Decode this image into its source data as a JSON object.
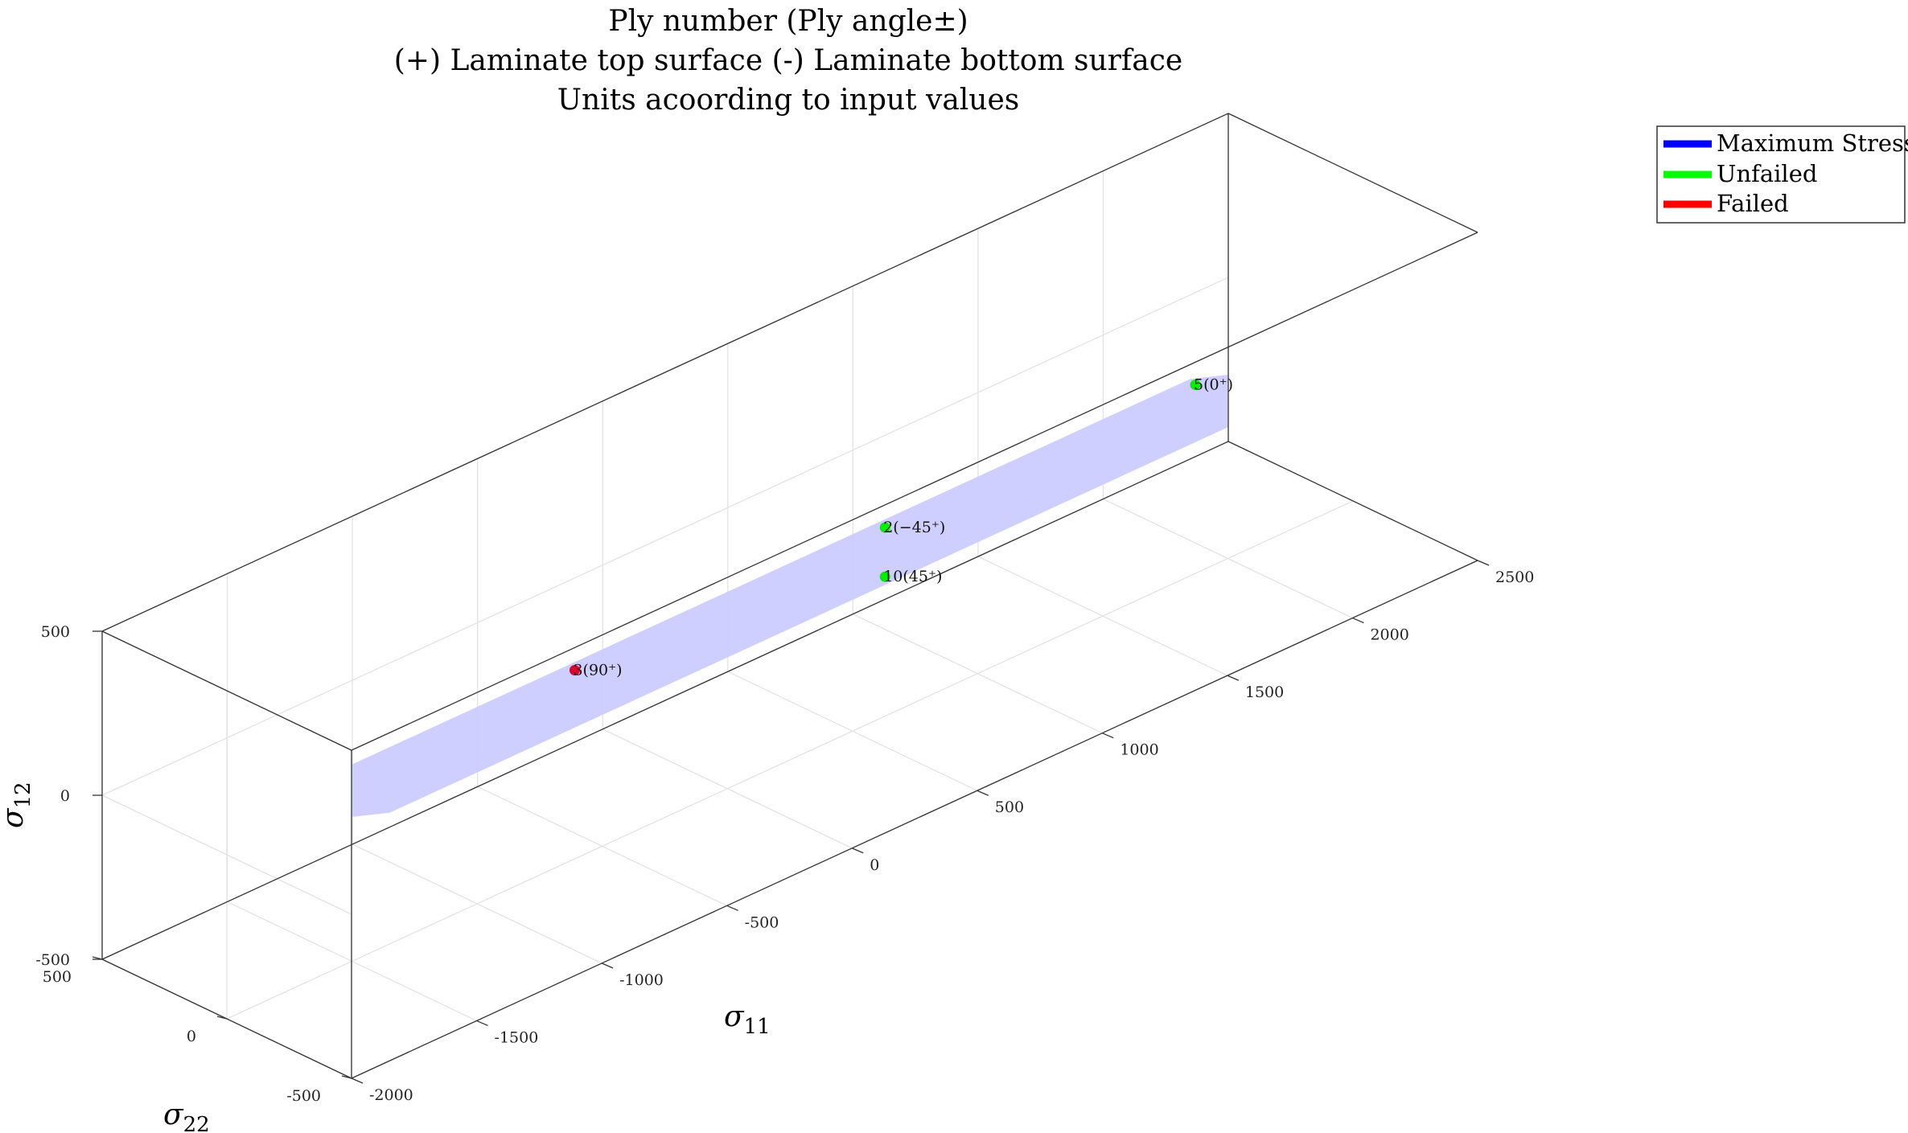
{
  "chart_data": {
    "type": "scatter",
    "title_lines": [
      "Ply number (Ply angle±)",
      "(+) Laminate top surface (-) Laminate bottom surface",
      "Units acoording to input values"
    ],
    "axes": {
      "x": {
        "label": "σ11",
        "range": [
          -2000,
          2500
        ],
        "ticks": [
          -2000,
          -1500,
          -1000,
          -500,
          0,
          500,
          1000,
          1500,
          2000,
          2500
        ]
      },
      "y": {
        "label": "σ22",
        "range": [
          -500,
          500
        ],
        "ticks": [
          -500,
          0,
          500
        ]
      },
      "z": {
        "label": "σ12",
        "range": [
          -500,
          500
        ],
        "ticks": [
          -500,
          0,
          500
        ]
      }
    },
    "grid": true,
    "legend": {
      "placement": "top-right",
      "entries": [
        {
          "label": "Maximum Stress",
          "color": "#0000ff"
        },
        {
          "label": "Unfailed",
          "color": "#00ff00"
        },
        {
          "label": "Failed",
          "color": "#ff0000"
        }
      ]
    },
    "failure_envelope": {
      "name": "Maximum Stress",
      "fill_color": "#ccccff",
      "sigma11": [
        -1500,
        2000
      ],
      "sigma22": [
        -250,
        250
      ],
      "sigma12": [
        -100,
        100
      ]
    },
    "points": [
      {
        "label": "3(90⁺)",
        "sigma11": -610,
        "sigma22": 0,
        "sigma12": 75,
        "status": "Failed"
      },
      {
        "label": "2(−45⁺)",
        "sigma11": 630,
        "sigma22": 0,
        "sigma12": 75,
        "status": "Unfailed"
      },
      {
        "label": "10(45⁺)",
        "sigma11": 630,
        "sigma22": 0,
        "sigma12": -75,
        "status": "Unfailed"
      },
      {
        "label": "5(0⁺)",
        "sigma11": 1870,
        "sigma22": 0,
        "sigma12": 75,
        "status": "Unfailed"
      }
    ],
    "colors": {
      "Unfailed": "#00ee00",
      "Failed": "#dd0033",
      "axis": "#333333",
      "grid": "#e3e3e3"
    }
  }
}
